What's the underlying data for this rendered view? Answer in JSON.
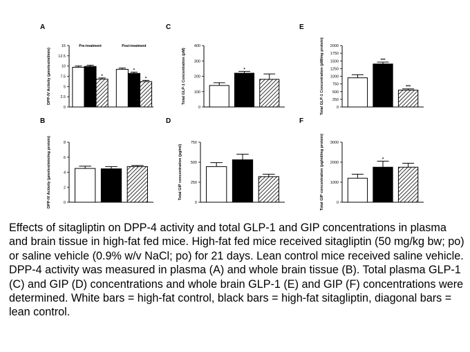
{
  "caption": "Effects of sitagliptin on DPP-4 activity and total GLP-1 and GIP concentrations in plasma and brain tissue in high-fat fed mice. High-fat fed mice received sitagliptin (50 mg/kg bw; po) or saline vehicle (0.9% w/v NaCl; po) for 21 days. Lean control mice received saline vehicle. DPP-4 activity was measured in plasma (A) and whole brain tissue (B). Total plasma GLP-1 (C) and GIP (D) concentrations and whole brain GLP-1 (E) and GIP (F) concentrations were determined. White bars = high-fat control, black bars = high-fat sitagliptin, diagonal bars = lean control.",
  "colors": {
    "high_fat_control": "#ffffff",
    "high_fat_sitagliptin": "#000000",
    "lean_control": "hatched"
  },
  "chart_data": [
    {
      "panel": "A",
      "type": "bar",
      "ylabel": "DPP-IV Activity (µmoles/ml/min)",
      "ylim": [
        0,
        15
      ],
      "yticks": [
        0,
        2.5,
        5,
        7.5,
        10,
        12.5,
        15
      ],
      "ytick_labels": [
        "0",
        "2.5",
        "5",
        "7.5",
        "10",
        "12.5",
        "15"
      ],
      "groups": [
        "Pre-treatment",
        "Post-treatment"
      ],
      "series": [
        {
          "fill": "white",
          "values": [
            9.7,
            9.2
          ],
          "errors": [
            0.3,
            0.3
          ],
          "marks": [
            "",
            ""
          ]
        },
        {
          "fill": "black",
          "values": [
            9.9,
            8.2
          ],
          "errors": [
            0.3,
            0.3
          ],
          "marks": [
            "",
            "*"
          ]
        },
        {
          "fill": "hatch",
          "values": [
            6.8,
            6.2
          ],
          "errors": [
            0.3,
            0.3
          ],
          "marks": [
            "*",
            "*"
          ]
        }
      ]
    },
    {
      "panel": "B",
      "type": "bar",
      "ylabel": "DPP-IV Activity (µmoles/min/mg protein)",
      "ylim": [
        0,
        8
      ],
      "yticks": [
        0,
        2,
        4,
        6,
        8
      ],
      "ytick_labels": [
        "0",
        "2",
        "4",
        "6",
        "8"
      ],
      "groups": [
        ""
      ],
      "series": [
        {
          "fill": "white",
          "values": [
            4.5
          ],
          "errors": [
            0.3
          ],
          "marks": [
            ""
          ]
        },
        {
          "fill": "black",
          "values": [
            4.45
          ],
          "errors": [
            0.3
          ],
          "marks": [
            ""
          ]
        },
        {
          "fill": "hatch",
          "values": [
            4.75
          ],
          "errors": [
            0.15
          ],
          "marks": [
            ""
          ]
        }
      ]
    },
    {
      "panel": "C",
      "type": "bar",
      "ylabel": "Total GLP-1 Concentration (pM)",
      "ylim": [
        0,
        400
      ],
      "yticks": [
        0,
        100,
        200,
        300,
        400
      ],
      "ytick_labels": [
        "0",
        "100",
        "200",
        "300",
        "400"
      ],
      "groups": [
        ""
      ],
      "series": [
        {
          "fill": "white",
          "values": [
            140
          ],
          "errors": [
            18
          ],
          "marks": [
            ""
          ]
        },
        {
          "fill": "black",
          "values": [
            220
          ],
          "errors": [
            12
          ],
          "marks": [
            "*"
          ]
        },
        {
          "fill": "hatch",
          "values": [
            180
          ],
          "errors": [
            35
          ],
          "marks": [
            ""
          ]
        }
      ]
    },
    {
      "panel": "D",
      "type": "bar",
      "ylabel": "Total GIP concentration (pg/ml)",
      "ylim": [
        0,
        750
      ],
      "yticks": [
        0,
        250,
        500,
        750
      ],
      "ytick_labels": [
        "0",
        "250",
        "500",
        "750"
      ],
      "groups": [
        ""
      ],
      "series": [
        {
          "fill": "white",
          "values": [
            445
          ],
          "errors": [
            50
          ],
          "marks": [
            ""
          ]
        },
        {
          "fill": "black",
          "values": [
            530
          ],
          "errors": [
            70
          ],
          "marks": [
            ""
          ]
        },
        {
          "fill": "hatch",
          "values": [
            320
          ],
          "errors": [
            30
          ],
          "marks": [
            ""
          ]
        }
      ]
    },
    {
      "panel": "E",
      "type": "bar",
      "ylabel": "Total GLP-1 Concentration (pM/mg protein)",
      "ylim": [
        0,
        2000
      ],
      "yticks": [
        0,
        250,
        500,
        750,
        1000,
        1250,
        1500,
        1750,
        2000
      ],
      "ytick_labels": [
        "0",
        "250",
        "500",
        "750",
        "1000",
        "1250",
        "1500",
        "1750",
        "2000"
      ],
      "groups": [
        ""
      ],
      "series": [
        {
          "fill": "white",
          "values": [
            950
          ],
          "errors": [
            100
          ],
          "marks": [
            ""
          ]
        },
        {
          "fill": "black",
          "values": [
            1400
          ],
          "errors": [
            60
          ],
          "marks": [
            "***"
          ]
        },
        {
          "fill": "hatch",
          "values": [
            550
          ],
          "errors": [
            40
          ],
          "marks": [
            "***"
          ]
        }
      ]
    },
    {
      "panel": "F",
      "type": "bar",
      "ylabel": "Total GIP concentration (pg/ml/mg protein)",
      "ylim": [
        0,
        3000
      ],
      "yticks": [
        0,
        1000,
        2000,
        3000
      ],
      "ytick_labels": [
        "0",
        "1000",
        "2000",
        "3000"
      ],
      "groups": [
        ""
      ],
      "series": [
        {
          "fill": "white",
          "values": [
            1200
          ],
          "errors": [
            200
          ],
          "marks": [
            ""
          ]
        },
        {
          "fill": "black",
          "values": [
            1750
          ],
          "errors": [
            300
          ],
          "marks": [
            "*"
          ]
        },
        {
          "fill": "hatch",
          "values": [
            1750
          ],
          "errors": [
            200
          ],
          "marks": [
            ""
          ]
        }
      ]
    }
  ]
}
